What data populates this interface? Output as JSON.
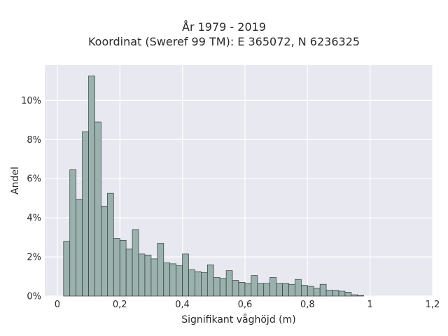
{
  "chart_data": {
    "type": "bar",
    "title": "År 1979 - 2019",
    "subtitle": "Koordinat (Sweref 99 TM): E 365072, N 6236325",
    "xlabel": "Signifikant våghöjd (m)",
    "ylabel": "Andel",
    "xlim": [
      -0.04,
      1.2
    ],
    "ylim": [
      0,
      11.8
    ],
    "x_ticks": [
      0,
      0.2,
      0.4,
      0.6,
      0.8,
      1,
      1.2
    ],
    "x_tick_labels": [
      "0",
      "0,2",
      "0,4",
      "0,6",
      "0,8",
      "1",
      "1,2"
    ],
    "y_ticks": [
      0,
      2,
      4,
      6,
      8,
      10
    ],
    "y_tick_labels": [
      "0%",
      "2%",
      "4%",
      "6%",
      "8%",
      "10%"
    ],
    "grid": true,
    "bin_width": 0.02,
    "bin_start": 0.02,
    "values": [
      2.8,
      6.45,
      4.95,
      8.4,
      11.25,
      8.9,
      4.6,
      5.25,
      2.95,
      2.85,
      2.4,
      3.4,
      2.15,
      2.1,
      1.9,
      2.7,
      1.7,
      1.65,
      1.55,
      2.15,
      1.35,
      1.25,
      1.2,
      1.6,
      0.95,
      0.9,
      1.3,
      0.8,
      0.7,
      0.65,
      1.05,
      0.65,
      0.65,
      0.95,
      0.65,
      0.65,
      0.6,
      0.85,
      0.55,
      0.5,
      0.4,
      0.6,
      0.3,
      0.3,
      0.25,
      0.2,
      0.07,
      0.03
    ],
    "colors": {
      "bar_fill": "#9bb1ae",
      "bar_edge": "#2f3b3a",
      "plot_bg": "#e8e8f0",
      "grid": "#ffffff"
    }
  }
}
